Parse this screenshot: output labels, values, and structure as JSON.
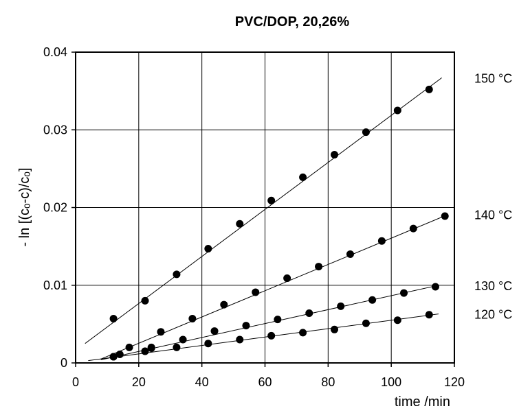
{
  "chart_data": {
    "type": "scatter",
    "title": "PVC/DOP,  20,26%",
    "xlabel": "time  /min",
    "ylabel": "- ln [(cₒ-c)/cₒ]",
    "xlim": [
      0,
      120
    ],
    "ylim": [
      0,
      0.04
    ],
    "x_ticks": [
      "0",
      "20",
      "40",
      "60",
      "80",
      "100",
      "120"
    ],
    "y_ticks": [
      "0",
      "0.01",
      "0.02",
      "0.03",
      "0.04"
    ],
    "grid": true,
    "series": [
      {
        "name": "150 °C",
        "x": [
          12,
          22,
          32,
          42,
          52,
          62,
          72,
          82,
          92,
          102,
          112
        ],
        "y": [
          0.0057,
          0.008,
          0.0114,
          0.0147,
          0.0179,
          0.0209,
          0.0239,
          0.0268,
          0.0297,
          0.0325,
          0.0352
        ],
        "fit": {
          "x": [
            3,
            116
          ],
          "y": [
            0.0025,
            0.0367
          ]
        }
      },
      {
        "name": "140 °C",
        "x": [
          12,
          17,
          24,
          27,
          37,
          47,
          57,
          67,
          77,
          87,
          97,
          107,
          117
        ],
        "y": [
          0.0008,
          0.002,
          0.0019,
          0.004,
          0.0057,
          0.0075,
          0.0091,
          0.0109,
          0.0124,
          0.014,
          0.0157,
          0.0173,
          0.0189
        ],
        "fit": {
          "x": [
            8,
            118
          ],
          "y": [
            0.0005,
            0.0191
          ]
        }
      },
      {
        "name": "130 °C",
        "x": [
          12,
          22,
          24,
          34,
          44,
          54,
          64,
          74,
          84,
          94,
          104,
          114
        ],
        "y": [
          0.0008,
          0.0015,
          0.002,
          0.003,
          0.0041,
          0.0048,
          0.0056,
          0.0064,
          0.0073,
          0.0081,
          0.009,
          0.0098
        ],
        "fit": {
          "x": [
            8,
            115
          ],
          "y": [
            0.0004,
            0.01
          ]
        }
      },
      {
        "name": "120 °C",
        "x": [
          14,
          22,
          32,
          42,
          52,
          62,
          72,
          82,
          92,
          102,
          112
        ],
        "y": [
          0.0011,
          0.0015,
          0.002,
          0.0025,
          0.003,
          0.0035,
          0.0039,
          0.0043,
          0.0051,
          0.0055,
          0.0062
        ],
        "fit": {
          "x": [
            4,
            115
          ],
          "y": [
            0.0003,
            0.0063
          ]
        }
      }
    ]
  }
}
